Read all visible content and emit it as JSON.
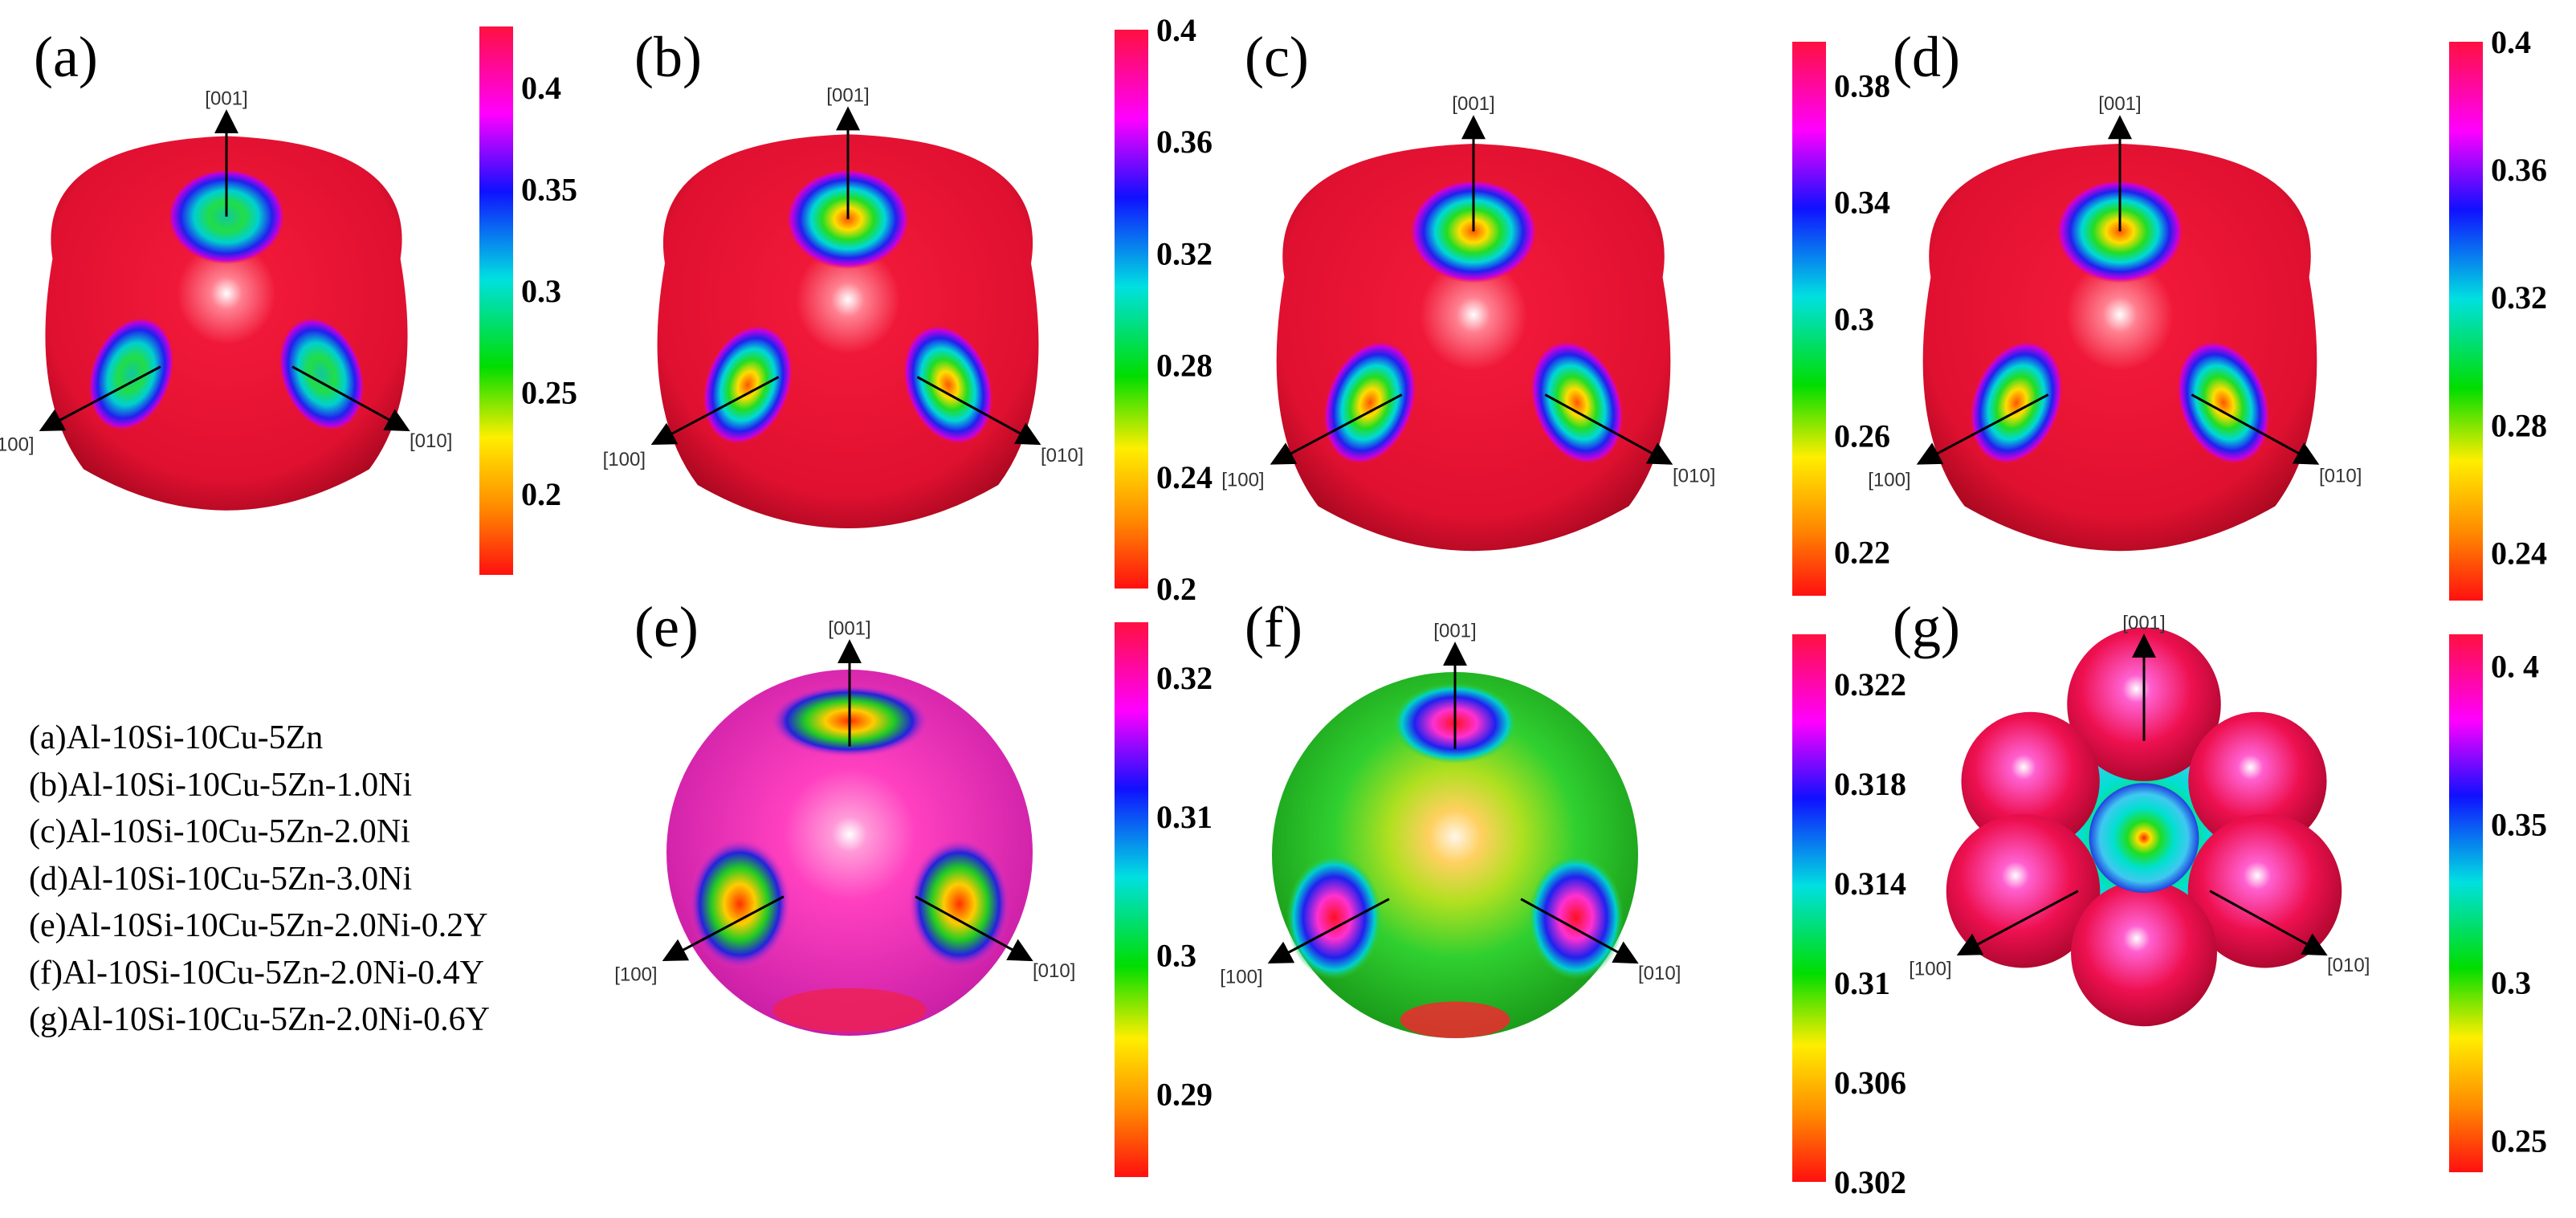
{
  "panels": [
    {
      "id": "a",
      "label": "(a)",
      "ticks": [
        "0.4",
        "0.35",
        "0.3",
        "0.25",
        "0.2"
      ],
      "tick_values": [
        0.4,
        0.35,
        0.3,
        0.25,
        0.2
      ],
      "range": [
        0.16,
        0.43
      ],
      "shape": "sphere"
    },
    {
      "id": "b",
      "label": "(b)",
      "ticks": [
        "0.4",
        "0.36",
        "0.32",
        "0.28",
        "0.24",
        "0.2"
      ],
      "tick_values": [
        0.4,
        0.36,
        0.32,
        0.28,
        0.24,
        0.2
      ],
      "range": [
        0.2,
        0.4
      ],
      "shape": "sphere"
    },
    {
      "id": "c",
      "label": "(c)",
      "ticks": [
        "0.38",
        "0.34",
        "0.3",
        "0.26",
        "0.22"
      ],
      "tick_values": [
        0.38,
        0.34,
        0.3,
        0.26,
        0.22
      ],
      "range": [
        0.205,
        0.395
      ],
      "shape": "sphere"
    },
    {
      "id": "d",
      "label": "(d)",
      "ticks": [
        "0.4",
        "0.36",
        "0.32",
        "0.28",
        "0.24"
      ],
      "tick_values": [
        0.4,
        0.36,
        0.32,
        0.28,
        0.24
      ],
      "range": [
        0.225,
        0.4
      ],
      "shape": "sphere"
    },
    {
      "id": "e",
      "label": "(e)",
      "ticks": [
        "0.32",
        "0.31",
        "0.3",
        "0.29"
      ],
      "tick_values": [
        0.32,
        0.31,
        0.3,
        0.29
      ],
      "range": [
        0.284,
        0.324
      ],
      "shape": "sphere"
    },
    {
      "id": "f",
      "label": "(f)",
      "ticks": [
        "0.322",
        "0.318",
        "0.314",
        "0.31",
        "0.306",
        "0.302"
      ],
      "tick_values": [
        0.322,
        0.318,
        0.314,
        0.31,
        0.306,
        0.302
      ],
      "range": [
        0.302,
        0.324
      ],
      "shape": "sphere"
    },
    {
      "id": "g",
      "label": "(g)",
      "ticks": [
        "0. 4",
        "0.35",
        "0.3",
        "0.25"
      ],
      "tick_values": [
        0.4,
        0.35,
        0.3,
        0.25
      ],
      "range": [
        0.24,
        0.41
      ],
      "shape": "lobed"
    }
  ],
  "axes": {
    "top": "[001]",
    "left": "[100]",
    "right": "[010]"
  },
  "legend": [
    "(a)Al-10Si-10Cu-5Zn",
    "(b)Al-10Si-10Cu-5Zn-1.0Ni",
    "(c)Al-10Si-10Cu-5Zn-2.0Ni",
    "(d)Al-10Si-10Cu-5Zn-3.0Ni",
    "(e)Al-10Si-10Cu-5Zn-2.0Ni-0.2Y",
    "(f)Al-10Si-10Cu-5Zn-2.0Ni-0.4Y",
    "(g)Al-10Si-10Cu-5Zn-2.0Ni-0.6Y"
  ],
  "colorscale": [
    "#ff1010",
    "#ff8800",
    "#ffee00",
    "#00dd00",
    "#00e0e0",
    "#1010ff",
    "#ff00ff",
    "#ff1040"
  ]
}
